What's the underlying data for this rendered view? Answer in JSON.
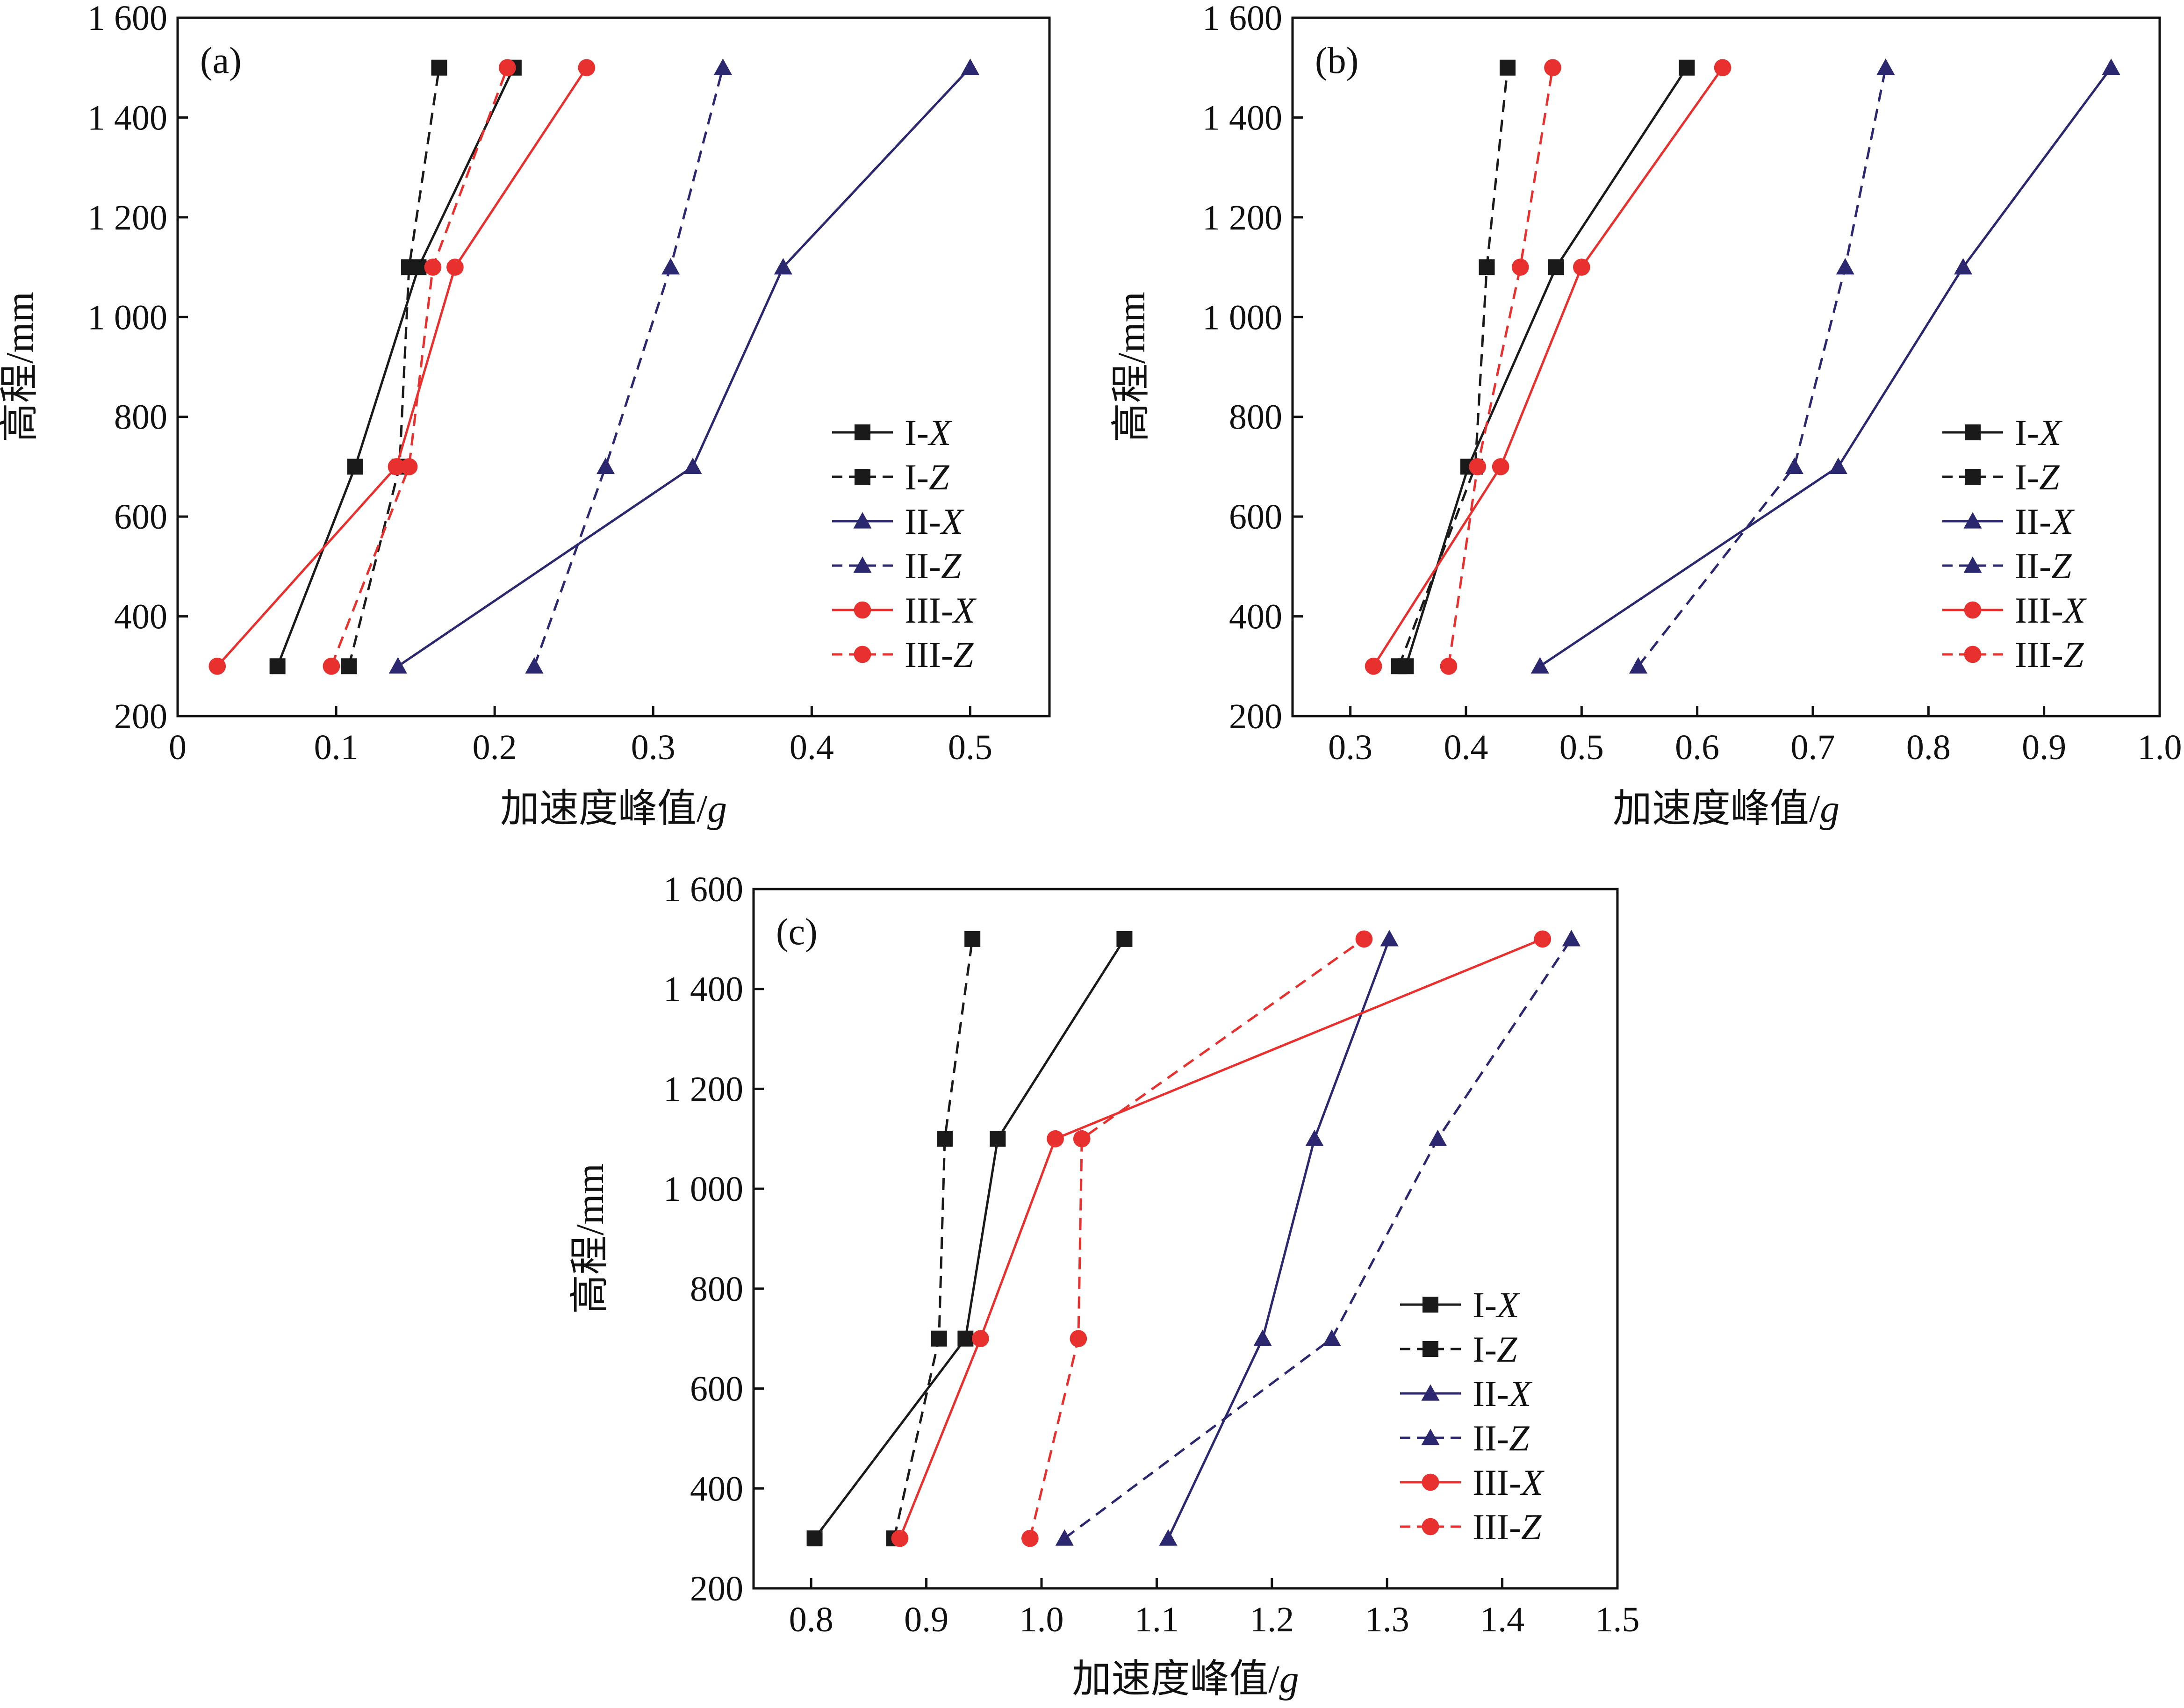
{
  "colors": {
    "I": "#1a1a1a",
    "II": "#2b2870",
    "III": "#e8312f",
    "axis": "#111111"
  },
  "chart_data": [
    {
      "type": "line",
      "panel_label": "(a)",
      "xlabel": "加速度峰值/",
      "xlabel_unit": "g",
      "ylabel": "高程/mm",
      "xlim": [
        0,
        0.55
      ],
      "ylim": [
        200,
        1600
      ],
      "xticks": [
        0,
        0.1,
        0.2,
        0.3,
        0.4,
        0.5
      ],
      "xtick_labels": [
        "0",
        "0.1",
        "0.2",
        "0.3",
        "0.4",
        "0.5"
      ],
      "yticks": [
        200,
        400,
        600,
        800,
        1000,
        1200,
        1400,
        1600
      ],
      "ytick_labels": [
        "200",
        "400",
        "600",
        "800",
        "1 000",
        "1 200",
        "1 400",
        "1 600"
      ],
      "legend_position": "bottom-right",
      "series": [
        {
          "name": "I-X",
          "prefix": "I-",
          "axis": "X",
          "group": "I",
          "marker": "square",
          "dash": false,
          "x": [
            0.063,
            0.112,
            0.152,
            0.212
          ],
          "y": [
            300,
            700,
            1100,
            1500
          ]
        },
        {
          "name": "I-Z",
          "prefix": "I-",
          "axis": "Z",
          "group": "I",
          "marker": "square",
          "dash": true,
          "x": [
            0.108,
            0.14,
            0.146,
            0.165
          ],
          "y": [
            300,
            700,
            1100,
            1500
          ]
        },
        {
          "name": "II-X",
          "prefix": "II-",
          "axis": "X",
          "group": "II",
          "marker": "triangle",
          "dash": false,
          "x": [
            0.139,
            0.325,
            0.382,
            0.5
          ],
          "y": [
            300,
            700,
            1100,
            1500
          ]
        },
        {
          "name": "II-Z",
          "prefix": "II-",
          "axis": "Z",
          "group": "II",
          "marker": "triangle",
          "dash": true,
          "x": [
            0.225,
            0.27,
            0.311,
            0.344
          ],
          "y": [
            300,
            700,
            1100,
            1500
          ]
        },
        {
          "name": "III-X",
          "prefix": "III-",
          "axis": "X",
          "group": "III",
          "marker": "circle",
          "dash": false,
          "x": [
            0.025,
            0.138,
            0.175,
            0.258
          ],
          "y": [
            300,
            700,
            1100,
            1500
          ]
        },
        {
          "name": "III-Z",
          "prefix": "III-",
          "axis": "Z",
          "group": "III",
          "marker": "circle",
          "dash": true,
          "x": [
            0.097,
            0.146,
            0.161,
            0.208
          ],
          "y": [
            300,
            700,
            1100,
            1500
          ]
        }
      ]
    },
    {
      "type": "line",
      "panel_label": "(b)",
      "xlabel": "加速度峰值/",
      "xlabel_unit": "g",
      "ylabel": "高程/mm",
      "xlim": [
        0.25,
        1.0
      ],
      "ylim": [
        200,
        1600
      ],
      "xticks": [
        0.3,
        0.4,
        0.5,
        0.6,
        0.7,
        0.8,
        0.9,
        1.0
      ],
      "xtick_labels": [
        "0.3",
        "0.4",
        "0.5",
        "0.6",
        "0.7",
        "0.8",
        "0.9",
        "1.0"
      ],
      "yticks": [
        200,
        400,
        600,
        800,
        1000,
        1200,
        1400,
        1600
      ],
      "ytick_labels": [
        "200",
        "400",
        "600",
        "800",
        "1 000",
        "1 200",
        "1 400",
        "1 600"
      ],
      "legend_position": "bottom-right",
      "series": [
        {
          "name": "I-X",
          "prefix": "I-",
          "axis": "X",
          "group": "I",
          "marker": "square",
          "dash": false,
          "x": [
            0.348,
            0.402,
            0.478,
            0.591
          ],
          "y": [
            300,
            700,
            1100,
            1500
          ]
        },
        {
          "name": "I-Z",
          "prefix": "I-",
          "axis": "Z",
          "group": "I",
          "marker": "square",
          "dash": true,
          "x": [
            0.342,
            0.408,
            0.418,
            0.436
          ],
          "y": [
            300,
            700,
            1100,
            1500
          ]
        },
        {
          "name": "II-X",
          "prefix": "II-",
          "axis": "X",
          "group": "II",
          "marker": "triangle",
          "dash": false,
          "x": [
            0.464,
            0.722,
            0.83,
            0.958
          ],
          "y": [
            300,
            700,
            1100,
            1500
          ]
        },
        {
          "name": "II-Z",
          "prefix": "II-",
          "axis": "Z",
          "group": "II",
          "marker": "triangle",
          "dash": true,
          "x": [
            0.549,
            0.684,
            0.728,
            0.763
          ],
          "y": [
            300,
            700,
            1100,
            1500
          ]
        },
        {
          "name": "III-X",
          "prefix": "III-",
          "axis": "X",
          "group": "III",
          "marker": "circle",
          "dash": false,
          "x": [
            0.32,
            0.43,
            0.5,
            0.622
          ],
          "y": [
            300,
            700,
            1100,
            1500
          ]
        },
        {
          "name": "III-Z",
          "prefix": "III-",
          "axis": "Z",
          "group": "III",
          "marker": "circle",
          "dash": true,
          "x": [
            0.385,
            0.41,
            0.447,
            0.475
          ],
          "y": [
            300,
            700,
            1100,
            1500
          ]
        }
      ]
    },
    {
      "type": "line",
      "panel_label": "(c)",
      "xlabel": "加速度峰值/",
      "xlabel_unit": "g",
      "ylabel": "高程/mm",
      "xlim": [
        0.75,
        1.5
      ],
      "ylim": [
        200,
        1600
      ],
      "xticks": [
        0.8,
        0.9,
        1.0,
        1.1,
        1.2,
        1.3,
        1.4,
        1.5
      ],
      "xtick_labels": [
        "0.8",
        "0.9",
        "1.0",
        "1.1",
        "1.2",
        "1.3",
        "1.4",
        "1.5"
      ],
      "yticks": [
        200,
        400,
        600,
        800,
        1000,
        1200,
        1400,
        1600
      ],
      "ytick_labels": [
        "200",
        "400",
        "600",
        "800",
        "1 000",
        "1 200",
        "1 400",
        "1 600"
      ],
      "legend_position": "bottom-right",
      "series": [
        {
          "name": "I-X",
          "prefix": "I-",
          "axis": "X",
          "group": "I",
          "marker": "square",
          "dash": false,
          "x": [
            0.803,
            0.934,
            0.962,
            1.072
          ],
          "y": [
            300,
            700,
            1100,
            1500
          ]
        },
        {
          "name": "I-Z",
          "prefix": "I-",
          "axis": "Z",
          "group": "I",
          "marker": "square",
          "dash": true,
          "x": [
            0.872,
            0.911,
            0.916,
            0.94
          ],
          "y": [
            300,
            700,
            1100,
            1500
          ]
        },
        {
          "name": "II-X",
          "prefix": "II-",
          "axis": "X",
          "group": "II",
          "marker": "triangle",
          "dash": false,
          "x": [
            1.11,
            1.192,
            1.237,
            1.302
          ],
          "y": [
            300,
            700,
            1100,
            1500
          ]
        },
        {
          "name": "II-Z",
          "prefix": "II-",
          "axis": "Z",
          "group": "II",
          "marker": "triangle",
          "dash": true,
          "x": [
            1.02,
            1.252,
            1.344,
            1.46
          ],
          "y": [
            300,
            700,
            1100,
            1500
          ]
        },
        {
          "name": "III-X",
          "prefix": "III-",
          "axis": "X",
          "group": "III",
          "marker": "circle",
          "dash": false,
          "x": [
            0.877,
            0.947,
            1.012,
            1.435
          ],
          "y": [
            300,
            700,
            1100,
            1500
          ]
        },
        {
          "name": "III-Z",
          "prefix": "III-",
          "axis": "Z",
          "group": "III",
          "marker": "circle",
          "dash": true,
          "x": [
            0.99,
            1.032,
            1.035,
            1.28
          ],
          "y": [
            300,
            700,
            1100,
            1500
          ]
        }
      ]
    }
  ]
}
